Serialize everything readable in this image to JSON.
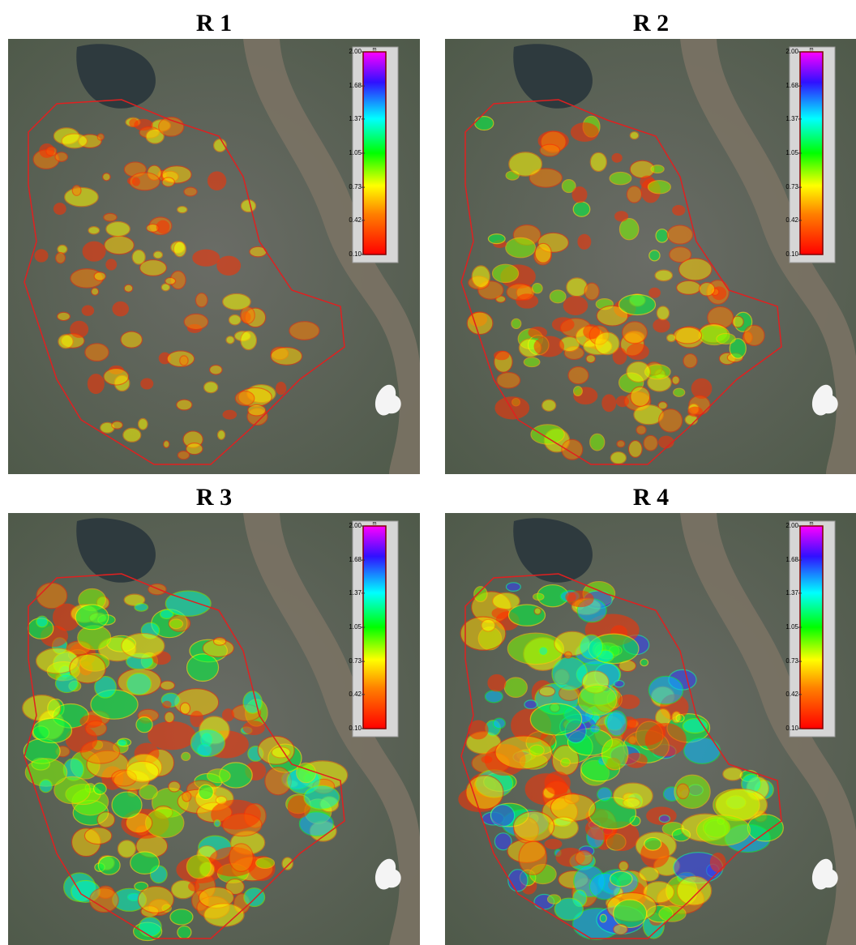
{
  "panels": [
    {
      "title": "R 1"
    },
    {
      "title": "R 2"
    },
    {
      "title": "R 3"
    },
    {
      "title": "R 4"
    }
  ],
  "legend": {
    "unit": "m",
    "ticks": [
      {
        "value": 2.0,
        "label": "2.00"
      },
      {
        "value": 1.68,
        "label": "1.68"
      },
      {
        "value": 1.37,
        "label": "1.37"
      },
      {
        "value": 1.05,
        "label": "1.05"
      },
      {
        "value": 0.73,
        "label": "0.73"
      },
      {
        "value": 0.42,
        "label": "0.42"
      },
      {
        "value": 0.1,
        "label": "0.10"
      }
    ]
  }
}
